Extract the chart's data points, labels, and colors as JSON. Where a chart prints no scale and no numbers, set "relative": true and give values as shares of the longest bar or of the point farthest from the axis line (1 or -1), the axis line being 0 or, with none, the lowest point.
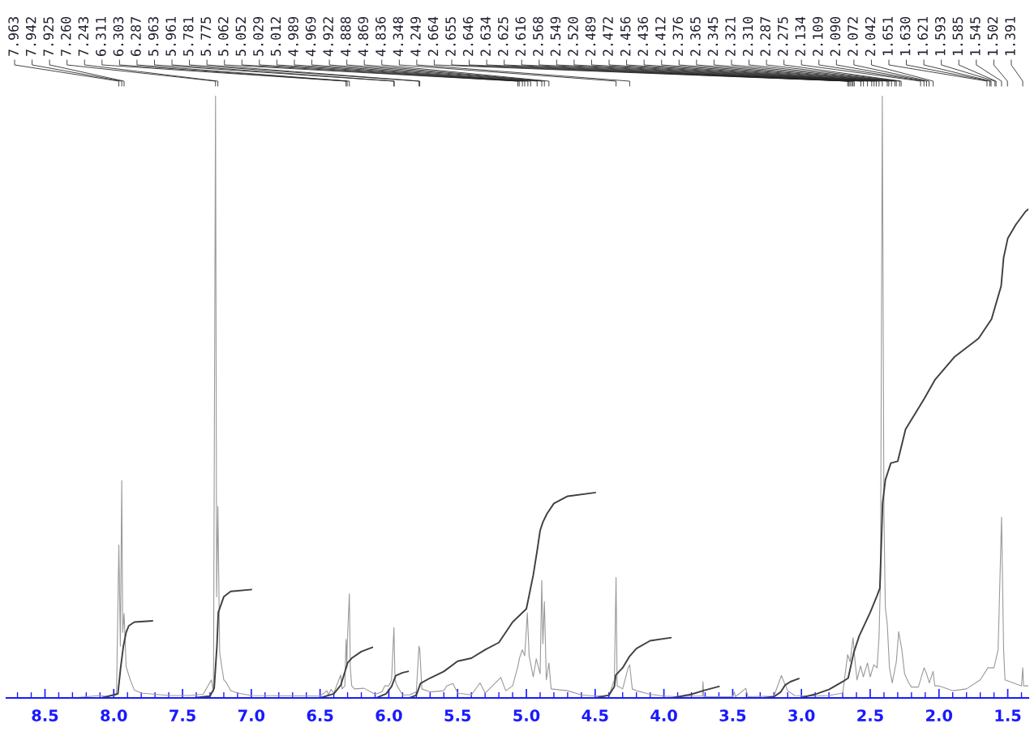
{
  "chart_data": {
    "type": "line",
    "relative": true,
    "tick_labels": "x",
    "xlim": [
      8.78,
      1.35
    ],
    "xticks": [
      8.5,
      {
        "value": 8,
        "label": "8.0"
      },
      7.5,
      {
        "value": 7,
        "label": "7.0"
      },
      6.5,
      {
        "value": 6,
        "label": "6.0"
      },
      5.5,
      {
        "value": 5,
        "label": "5.0"
      },
      4.5,
      {
        "value": 4,
        "label": "4.0"
      },
      3.5,
      {
        "value": 3,
        "label": "3.0"
      },
      2.5,
      {
        "value": 2,
        "label": "2.0"
      },
      1.5
    ],
    "series": [
      {
        "color": "#9a9a9a",
        "x": [
          8.78,
          8.3,
          8.1,
          8.05,
          7.98,
          7.963,
          7.952,
          7.942,
          7.935,
          7.925,
          7.91,
          7.88,
          7.85,
          7.8,
          7.6,
          7.45,
          7.35,
          7.29,
          7.275,
          7.26,
          7.252,
          7.243,
          7.23,
          7.2,
          7.18,
          7.15,
          7.1,
          7.0,
          6.5,
          6.45,
          6.44,
          6.42,
          6.4,
          6.35,
          6.34,
          6.32,
          6.311,
          6.305,
          6.303,
          6.287,
          6.28,
          6.27,
          6.25,
          6.18,
          6.1,
          6.05,
          6.03,
          6.0,
          5.98,
          5.963,
          5.955,
          5.94,
          5.9,
          5.85,
          5.8,
          5.781,
          5.775,
          5.76,
          5.7,
          5.6,
          5.58,
          5.534,
          5.5,
          5.4,
          5.337,
          5.3,
          5.186,
          5.15,
          5.1,
          5.062,
          5.05,
          5.03,
          5.012,
          4.993,
          4.98,
          4.95,
          4.928,
          4.9,
          4.888,
          4.88,
          4.869,
          4.855,
          4.836,
          4.82,
          4.7,
          4.6,
          4.5,
          4.4,
          4.36,
          4.348,
          4.34,
          4.3,
          4.26,
          4.249,
          4.23,
          4.2,
          4.1,
          4.0,
          3.9,
          3.8,
          3.72,
          3.716,
          3.71,
          3.5,
          3.488,
          3.48,
          3.404,
          3.39,
          3.2,
          3.146,
          3.1,
          3.05,
          2.9,
          2.8,
          2.7,
          2.664,
          2.646,
          2.625,
          2.61,
          2.596,
          2.57,
          2.55,
          2.52,
          2.5,
          2.474,
          2.45,
          2.436,
          2.425,
          2.412,
          2.4,
          2.39,
          2.376,
          2.36,
          2.34,
          2.31,
          2.293,
          2.27,
          2.25,
          2.22,
          2.2,
          2.15,
          2.108,
          2.09,
          2.07,
          2.043,
          2.03,
          2.0,
          1.9,
          1.8,
          1.7,
          1.644,
          1.6,
          1.57,
          1.545,
          1.53,
          1.52,
          1.46,
          1.4,
          1.391,
          1.385,
          1.35
        ],
        "values": [
          0,
          0,
          0.004,
          0.002,
          0.005,
          0.254,
          0.086,
          0.361,
          0.109,
          0.14,
          0.052,
          0.03,
          0.013,
          0.008,
          0.004,
          0.004,
          0.006,
          0.03,
          0.01,
          1.0,
          0.168,
          0.318,
          0.075,
          0.03,
          0.025,
          0.012,
          0.008,
          0.004,
          0.003,
          0.012,
          0.005,
          0.014,
          0.008,
          0.038,
          0.015,
          0.02,
          0.097,
          0.05,
          0.086,
          0.173,
          0.05,
          0.02,
          0.015,
          0.016,
          0.006,
          0.01,
          0.02,
          0.02,
          0.03,
          0.117,
          0.03,
          0.02,
          0.005,
          0.005,
          0.01,
          0.086,
          0.08,
          0.015,
          0.01,
          0.012,
          0.02,
          0.024,
          0.008,
          0.005,
          0.025,
          0.008,
          0.034,
          0.012,
          0.02,
          0.052,
          0.066,
          0.08,
          0.07,
          0.141,
          0.07,
          0.035,
          0.065,
          0.04,
          0.195,
          0.09,
          0.16,
          0.03,
          0.058,
          0.015,
          0.012,
          0.005,
          0.003,
          0.004,
          0.03,
          0.2,
          0.02,
          0.015,
          0.05,
          0.055,
          0.015,
          0.012,
          0.006,
          0.003,
          0.002,
          0.003,
          0.003,
          0.027,
          0.002,
          0.002,
          0.01,
          0.002,
          0.016,
          0.002,
          0.003,
          0.037,
          0.012,
          0.004,
          0.003,
          0.004,
          0.008,
          0.072,
          0.06,
          0.1,
          0.06,
          0.03,
          0.053,
          0.035,
          0.058,
          0.035,
          0.055,
          0.05,
          0.1,
          0.2,
          1.0,
          0.3,
          0.15,
          0.123,
          0.05,
          0.025,
          0.06,
          0.11,
          0.08,
          0.04,
          0.025,
          0.018,
          0.018,
          0.05,
          0.04,
          0.025,
          0.044,
          0.02,
          0.02,
          0.012,
          0.015,
          0.03,
          0.05,
          0.05,
          0.08,
          0.3,
          0.08,
          0.03,
          0.025,
          0.02,
          0.05,
          0.02,
          0.02
        ]
      },
      {
        "color": "#404040",
        "x": [
          8.09,
          8.0,
          7.97,
          7.95,
          7.93,
          7.91,
          7.89,
          7.85,
          7.72
        ],
        "values": [
          0,
          0.005,
          0.007,
          0.05,
          0.086,
          0.109,
          0.12,
          0.126,
          0.128
        ]
      },
      {
        "color": "#404040",
        "x": [
          7.42,
          7.3,
          7.27,
          7.25,
          7.24,
          7.2,
          7.15,
          7.0
        ],
        "values": [
          0,
          0.003,
          0.016,
          0.086,
          0.142,
          0.168,
          0.177,
          0.18
        ]
      },
      {
        "color": "#404040",
        "x": [
          6.5,
          6.4,
          6.35,
          6.3,
          6.27,
          6.2,
          6.12
        ],
        "values": [
          0,
          0.007,
          0.021,
          0.058,
          0.066,
          0.077,
          0.084
        ]
      },
      {
        "color": "#404040",
        "x": [
          6.09,
          6.02,
          5.98,
          5.95,
          5.9,
          5.86
        ],
        "values": [
          0,
          0.007,
          0.019,
          0.037,
          0.042,
          0.044
        ]
      },
      {
        "color": "#404040",
        "x": [
          5.85,
          5.8,
          5.77,
          5.7,
          5.6,
          5.5,
          5.4,
          5.3,
          5.2,
          5.1,
          5.0,
          4.95,
          4.92,
          4.9,
          4.88,
          4.85,
          4.8,
          4.7,
          4.5
        ],
        "values": [
          0,
          0.0045,
          0.024,
          0.033,
          0.044,
          0.061,
          0.066,
          0.08,
          0.092,
          0.126,
          0.148,
          0.204,
          0.247,
          0.278,
          0.292,
          0.306,
          0.323,
          0.335,
          0.341
        ]
      },
      {
        "color": "#404040",
        "x": [
          4.5,
          4.4,
          4.36,
          4.35,
          4.3,
          4.25,
          4.2,
          4.1,
          3.95
        ],
        "values": [
          0,
          0.0045,
          0.019,
          0.038,
          0.05,
          0.069,
          0.082,
          0.095,
          0.1
        ]
      },
      {
        "color": "#404040",
        "x": [
          3.94,
          3.8,
          3.7,
          3.6
        ],
        "values": [
          0,
          0.006,
          0.013,
          0.019
        ]
      },
      {
        "color": "#404040",
        "x": [
          3.28,
          3.2,
          3.15,
          3.12,
          3.08,
          3.02
        ],
        "values": [
          0,
          0.002,
          0.01,
          0.021,
          0.027,
          0.032
        ]
      },
      {
        "color": "#404040",
        "x": [
          3.01,
          2.9,
          2.8,
          2.7,
          2.66,
          2.62,
          2.58,
          2.5,
          2.45,
          2.43,
          2.42,
          2.41,
          2.39,
          2.37,
          2.35,
          2.3,
          2.243,
          2.107,
          2.03,
          1.889,
          1.712,
          1.618,
          1.548,
          1.53,
          1.5,
          1.441,
          1.37,
          1.353
        ],
        "values": [
          0,
          0.006,
          0.014,
          0.027,
          0.033,
          0.075,
          0.103,
          0.142,
          0.17,
          0.182,
          0.25,
          0.323,
          0.362,
          0.376,
          0.39,
          0.393,
          0.446,
          0.497,
          0.528,
          0.566,
          0.597,
          0.629,
          0.684,
          0.731,
          0.763,
          0.786,
          0.808,
          0.811
        ]
      }
    ],
    "annotations": [
      {
        "text": "7.963",
        "x": 7.963
      },
      {
        "text": "7.942",
        "x": 7.942
      },
      {
        "text": "7.925",
        "x": 7.925
      },
      {
        "text": "7.260",
        "x": 7.26
      },
      {
        "text": "7.243",
        "x": 7.243
      },
      {
        "text": "6.311",
        "x": 6.311
      },
      {
        "text": "6.303",
        "x": 6.303
      },
      {
        "text": "6.287",
        "x": 6.287
      },
      {
        "text": "5.963",
        "x": 5.963
      },
      {
        "text": "5.961",
        "x": 5.961
      },
      {
        "text": "5.781",
        "x": 5.781
      },
      {
        "text": "5.775",
        "x": 5.775
      },
      {
        "text": "5.062",
        "x": 5.062
      },
      {
        "text": "5.052",
        "x": 5.052
      },
      {
        "text": "5.029",
        "x": 5.029
      },
      {
        "text": "5.012",
        "x": 5.012
      },
      {
        "text": "4.989",
        "x": 4.989
      },
      {
        "text": "4.969",
        "x": 4.969
      },
      {
        "text": "4.922",
        "x": 4.922
      },
      {
        "text": "4.888",
        "x": 4.888
      },
      {
        "text": "4.869",
        "x": 4.869
      },
      {
        "text": "4.836",
        "x": 4.836
      },
      {
        "text": "4.348",
        "x": 4.348
      },
      {
        "text": "4.249",
        "x": 4.249
      },
      {
        "text": "2.664",
        "x": 2.664
      },
      {
        "text": "2.655",
        "x": 2.655
      },
      {
        "text": "2.646",
        "x": 2.646
      },
      {
        "text": "2.634",
        "x": 2.634
      },
      {
        "text": "2.625",
        "x": 2.625
      },
      {
        "text": "2.616",
        "x": 2.616
      },
      {
        "text": "2.568",
        "x": 2.568
      },
      {
        "text": "2.549",
        "x": 2.549
      },
      {
        "text": "2.520",
        "x": 2.52
      },
      {
        "text": "2.489",
        "x": 2.489
      },
      {
        "text": "2.472",
        "x": 2.472
      },
      {
        "text": "2.456",
        "x": 2.456
      },
      {
        "text": "2.436",
        "x": 2.436
      },
      {
        "text": "2.412",
        "x": 2.412
      },
      {
        "text": "2.376",
        "x": 2.376
      },
      {
        "text": "2.365",
        "x": 2.365
      },
      {
        "text": "2.345",
        "x": 2.345
      },
      {
        "text": "2.321",
        "x": 2.321
      },
      {
        "text": "2.310",
        "x": 2.31
      },
      {
        "text": "2.287",
        "x": 2.287
      },
      {
        "text": "2.275",
        "x": 2.275
      },
      {
        "text": "2.134",
        "x": 2.134
      },
      {
        "text": "2.109",
        "x": 2.109
      },
      {
        "text": "2.090",
        "x": 2.09
      },
      {
        "text": "2.072",
        "x": 2.072
      },
      {
        "text": "2.042",
        "x": 2.042
      },
      {
        "text": "1.651",
        "x": 1.651
      },
      {
        "text": "1.630",
        "x": 1.63
      },
      {
        "text": "1.621",
        "x": 1.621
      },
      {
        "text": "1.593",
        "x": 1.593
      },
      {
        "text": "1.585",
        "x": 1.585
      },
      {
        "text": "1.545",
        "x": 1.545
      },
      {
        "text": "1.502",
        "x": 1.502
      },
      {
        "text": "1.391",
        "x": 1.391
      }
    ]
  }
}
